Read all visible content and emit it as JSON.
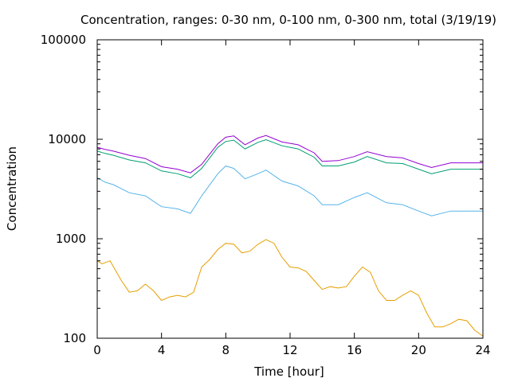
{
  "chart_data": {
    "type": "line",
    "title": "Concentration, ranges: 0-30 nm, 0-100 nm, 0-300 nm, total (3/19/19)",
    "xlabel": "Time [hour]",
    "ylabel": "Concentration",
    "xlim": [
      0,
      24
    ],
    "ylim": [
      100,
      100000
    ],
    "yscale": "log",
    "grid": false,
    "legend": "none",
    "x_ticks": [
      0,
      4,
      8,
      12,
      16,
      20,
      24
    ],
    "x_tick_labels": [
      "0",
      "4",
      "8",
      "12",
      "16",
      "20",
      "24"
    ],
    "y_ticks": [
      100,
      1000,
      10000,
      100000
    ],
    "y_tick_labels": [
      "100",
      "1000",
      "10000",
      "100000"
    ],
    "series": [
      {
        "color": "#9400d3",
        "x": [
          0,
          0.5,
          1,
          2,
          3,
          4,
          5,
          5.8,
          6.5,
          7.5,
          8,
          8.5,
          9.2,
          10,
          10.5,
          11.5,
          12.5,
          13.5,
          14,
          15,
          16,
          16.8,
          18,
          19,
          20,
          20.8,
          22,
          23,
          24
        ],
        "y": [
          8300,
          7900,
          7600,
          6900,
          6400,
          5300,
          5000,
          4600,
          5600,
          9000,
          10500,
          10800,
          8800,
          10300,
          10900,
          9400,
          8800,
          7300,
          6000,
          6100,
          6700,
          7500,
          6700,
          6500,
          5700,
          5200,
          5800,
          5800,
          5800
        ]
      },
      {
        "color": "#009e73",
        "x": [
          0,
          0.5,
          1,
          2,
          3,
          4,
          5,
          5.8,
          6.5,
          7.5,
          8,
          8.5,
          9.2,
          10,
          10.5,
          11.5,
          12.5,
          13.5,
          14,
          15,
          16,
          16.8,
          18,
          19,
          20,
          20.8,
          22,
          23,
          24
        ],
        "y": [
          7600,
          7200,
          6900,
          6200,
          5800,
          4800,
          4500,
          4100,
          5100,
          8300,
          9500,
          9800,
          8000,
          9300,
          9900,
          8600,
          8000,
          6600,
          5400,
          5400,
          5900,
          6700,
          5800,
          5700,
          5000,
          4500,
          5000,
          5000,
          5000
        ]
      },
      {
        "color": "#56b4e9",
        "x": [
          0,
          0.5,
          1,
          2,
          3,
          4,
          5,
          5.8,
          6.5,
          7.5,
          8,
          8.5,
          9.2,
          10,
          10.5,
          11.5,
          12.5,
          13.5,
          14,
          15,
          16,
          16.8,
          18,
          19,
          20,
          20.8,
          22,
          23,
          24
        ],
        "y": [
          4100,
          3700,
          3500,
          2900,
          2700,
          2100,
          2000,
          1800,
          2700,
          4500,
          5400,
          5100,
          4000,
          4500,
          4900,
          3800,
          3400,
          2700,
          2200,
          2200,
          2600,
          2900,
          2300,
          2200,
          1900,
          1700,
          1900,
          1900,
          1900
        ]
      },
      {
        "color": "#e69f00",
        "x": [
          0,
          0.3,
          0.8,
          1.5,
          2,
          2.5,
          3,
          3.5,
          4,
          4.5,
          5,
          5.5,
          6,
          6.5,
          7,
          7.5,
          8,
          8.5,
          9,
          9.5,
          10,
          10.5,
          11,
          11.5,
          12,
          12.5,
          13,
          13.5,
          14,
          14.5,
          15,
          15.5,
          16,
          16.5,
          17,
          17.5,
          18,
          18.5,
          19,
          19.5,
          20,
          20.5,
          21,
          21.5,
          22,
          22.5,
          23,
          23.5,
          24
        ],
        "y": [
          600,
          560,
          600,
          380,
          290,
          300,
          350,
          300,
          240,
          260,
          270,
          260,
          290,
          520,
          620,
          780,
          900,
          880,
          720,
          750,
          880,
          980,
          900,
          650,
          520,
          510,
          470,
          380,
          310,
          330,
          320,
          330,
          420,
          520,
          460,
          300,
          240,
          240,
          270,
          300,
          270,
          180,
          130,
          130,
          140,
          155,
          150,
          120,
          105
        ]
      }
    ]
  }
}
